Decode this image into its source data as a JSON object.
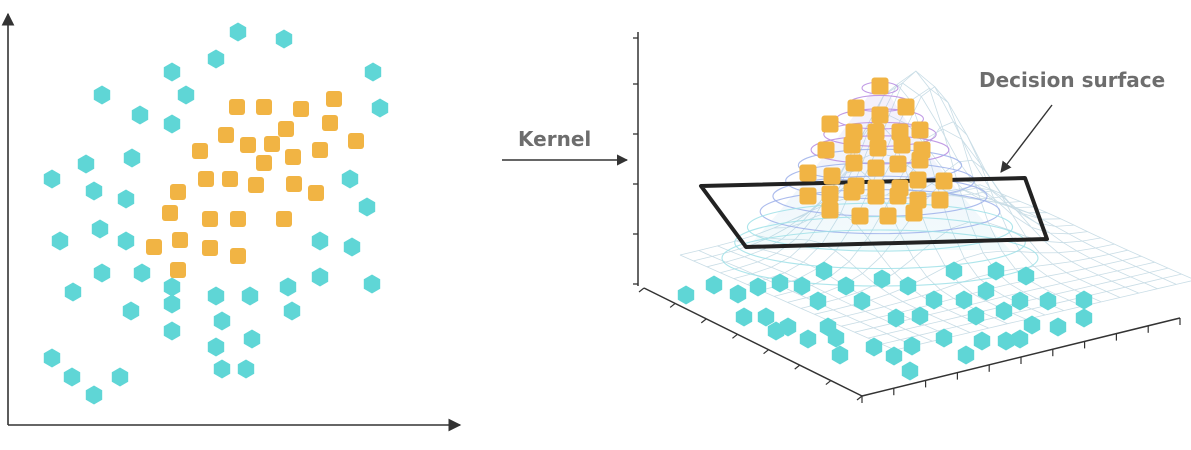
{
  "labels": {
    "kernel": "Kernel",
    "decision_surface": "Decision surface"
  },
  "colors": {
    "outer_class": "#5fd6d6",
    "inner_class": "#f1b444",
    "axis": "#333333",
    "label_text": "#6d6d6d",
    "decision_plane": "#222222"
  },
  "icons": {
    "outer_marker": "hexagon",
    "inner_marker": "rounded-square"
  }
}
